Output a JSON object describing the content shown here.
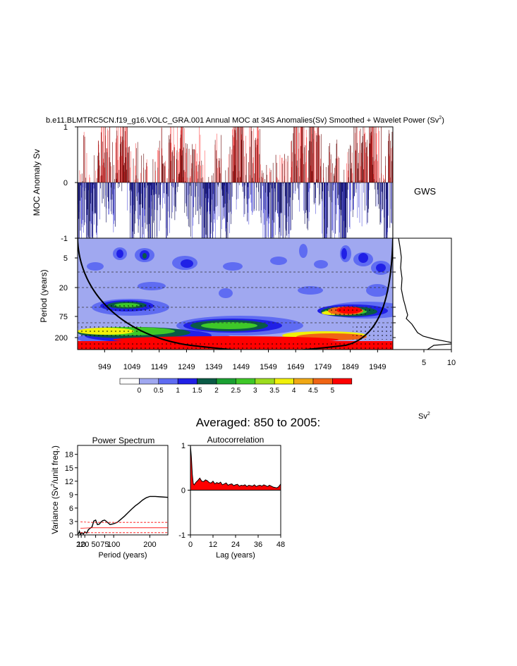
{
  "title": "b.e11.BLMTRC5CN.f19_g16.VOLC_GRA.001 Annual MOC at 34S Anomalies(Sv) Smoothed + Wavelet Power (Sv",
  "title_sup": "2",
  "title_close": ")",
  "chart_data": [
    {
      "id": "anomaly",
      "type": "bar",
      "ylabel": "MOC Anomaly Sv",
      "ylim": [
        -1,
        1
      ],
      "yticks": [
        "1",
        "0",
        "-1"
      ],
      "xlim": [
        850,
        2005
      ],
      "positive_color": "#ff0000",
      "negative_color": "#0000cc",
      "bar_outline_color": "#000000"
    },
    {
      "id": "wavelet",
      "type": "heatmap",
      "ylabel": "Period (years)",
      "yticks": [
        "5",
        "20",
        "75",
        "200"
      ],
      "xticks": [
        "949",
        "1049",
        "1149",
        "1249",
        "1349",
        "1449",
        "1549",
        "1649",
        "1749",
        "1849",
        "1949"
      ],
      "xlim": [
        850,
        2005
      ],
      "colorbar": {
        "levels": [
          "0",
          "0.5",
          "1",
          "1.5",
          "2",
          "2.5",
          "3",
          "3.5",
          "4",
          "4.5",
          "5"
        ],
        "colors": [
          "#ffffff",
          "#a0a8f0",
          "#5f6cf2",
          "#2020e6",
          "#0a5a46",
          "#1aa032",
          "#3ec828",
          "#9cdc1e",
          "#f0f00a",
          "#f0a814",
          "#f06414",
          "#ff0000"
        ],
        "unit": "Sv",
        "unit_sup": "2"
      }
    },
    {
      "id": "gws",
      "type": "line",
      "title": "GWS",
      "xticks": [
        "5",
        "10"
      ],
      "xlim": [
        0,
        10
      ]
    },
    {
      "id": "power-spectrum",
      "type": "line",
      "title": "Power Spectrum",
      "xlabel": "Period (years)",
      "ylabel": "Variance (Sv",
      "ylabel_sup": "2",
      "ylabel_tail": "/unit freq.)",
      "xticks": [
        "2",
        "10",
        "20",
        "50",
        "75",
        "100",
        "200"
      ],
      "xlim": [
        0,
        250
      ],
      "yticks": [
        "0",
        "3",
        "6",
        "9",
        "12",
        "15",
        "18"
      ],
      "ylim": [
        0,
        20
      ],
      "series": [
        {
          "x": [
            2,
            5,
            8,
            12,
            16,
            20,
            25,
            30,
            35,
            40,
            45,
            50,
            55,
            60,
            65,
            70,
            75,
            80,
            90,
            100,
            110,
            120,
            130,
            140,
            150,
            160,
            170,
            180,
            190,
            200,
            215,
            230,
            250
          ],
          "values": [
            0.2,
            0.8,
            0.1,
            0.5,
            0.2,
            0.7,
            0.4,
            1.2,
            1.5,
            1.8,
            3.1,
            3.3,
            2.3,
            2.4,
            2.9,
            3.2,
            3.3,
            3.0,
            2.3,
            2.5,
            2.8,
            3.5,
            4.2,
            5.0,
            5.8,
            6.5,
            7.1,
            7.8,
            8.3,
            8.6,
            8.6,
            8.5,
            8.4
          ]
        }
      ],
      "significance": [
        {
          "name": "95%",
          "values": [
            2.9,
            2.8,
            2.8,
            2.8
          ]
        },
        {
          "name": "mean",
          "values": [
            1.5,
            1.6,
            1.6,
            1.6
          ]
        },
        {
          "name": "5%",
          "values": [
            0.5,
            0.5,
            0.5,
            0.5
          ]
        }
      ]
    },
    {
      "id": "autocorrelation",
      "type": "area",
      "title": "Autocorrelation",
      "xlabel": "Lag (years)",
      "xticks": [
        "0",
        "12",
        "24",
        "36",
        "48"
      ],
      "xlim": [
        0,
        48
      ],
      "yticks": [
        "1",
        "0",
        "-1"
      ],
      "ylim": [
        -1,
        1
      ],
      "x": [
        0,
        0.5,
        1,
        1.5,
        2,
        3,
        4,
        5,
        6,
        7,
        8,
        9,
        10,
        11,
        12,
        13,
        14,
        15,
        16,
        17,
        18,
        19,
        20,
        21,
        22,
        23,
        24,
        25,
        26,
        27,
        28,
        29,
        30,
        31,
        32,
        33,
        34,
        35,
        36,
        37,
        38,
        39,
        40,
        41,
        42,
        43,
        44,
        45,
        46,
        47,
        48
      ],
      "values": [
        1.0,
        0.75,
        0.35,
        0.15,
        0.12,
        0.18,
        0.22,
        0.27,
        0.2,
        0.19,
        0.23,
        0.21,
        0.17,
        0.16,
        0.2,
        0.14,
        0.17,
        0.15,
        0.18,
        0.12,
        0.14,
        0.16,
        0.11,
        0.13,
        0.14,
        0.1,
        0.12,
        0.13,
        0.09,
        0.11,
        0.1,
        0.12,
        0.08,
        0.11,
        0.1,
        0.09,
        0.12,
        0.08,
        0.1,
        0.11,
        0.09,
        0.12,
        0.1,
        0.08,
        0.11,
        0.09,
        0.07,
        0.06,
        0.05,
        0.08,
        0.14
      ],
      "fill_color": "#ff0000"
    }
  ],
  "averaged_title": "Averaged: 850 to 2005:"
}
